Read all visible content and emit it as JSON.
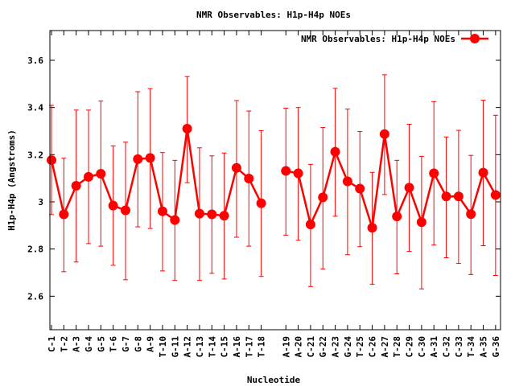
{
  "chart_data": {
    "type": "line",
    "title": "NMR Observables: H1p-H4p NOEs",
    "xlabel": "Nucleotide",
    "ylabel": "H1p-H4p (Angstroms)",
    "ylim": [
      2.458,
      3.726
    ],
    "xlim": [
      -0.13,
      36.4
    ],
    "yticks": [
      2.6,
      2.8,
      3.0,
      3.2,
      3.4,
      3.6
    ],
    "ytick_labels": [
      "2.6",
      "2.8",
      "3",
      "3.2",
      "3.4",
      "3.6"
    ],
    "legend": {
      "label": "NMR Observables: H1p-H4p NOEs",
      "position": "top-right"
    },
    "color": "#ff0000",
    "categories": [
      "C-1",
      "T-2",
      "A-3",
      "G-4",
      "G-5",
      "T-6",
      "G-7",
      "G-8",
      "A-9",
      "T-10",
      "G-11",
      "A-12",
      "C-13",
      "T-14",
      "C-15",
      "A-16",
      "T-17",
      "T-18",
      "A-19",
      "A-20",
      "C-21",
      "G-22",
      "A-23",
      "G-24",
      "T-25",
      "C-26",
      "A-27",
      "T-28",
      "C-29",
      "C-30",
      "A-31",
      "C-32",
      "C-33",
      "T-34",
      "A-35",
      "G-36"
    ],
    "x": [
      0,
      1,
      2,
      3,
      4,
      5,
      6,
      7,
      8,
      9,
      10,
      11,
      12,
      13,
      14,
      15,
      16,
      17,
      19,
      20,
      21,
      22,
      23,
      24,
      25,
      26,
      27,
      28,
      29,
      30,
      31,
      32,
      33,
      34,
      35,
      36
    ],
    "series": [
      {
        "name": "NMR Observables: H1p-H4p NOEs",
        "values": [
          3.177,
          2.947,
          3.068,
          3.106,
          3.119,
          2.984,
          2.964,
          3.181,
          3.186,
          2.96,
          2.923,
          3.31,
          2.95,
          2.947,
          2.941,
          3.144,
          3.099,
          2.994,
          3.131,
          3.121,
          2.904,
          3.019,
          3.212,
          3.087,
          3.056,
          2.89,
          3.287,
          2.938,
          3.06,
          2.914,
          3.121,
          3.023,
          3.023,
          2.948,
          3.124,
          3.029
        ],
        "err_high": [
          3.409,
          3.185,
          3.389,
          3.389,
          3.427,
          3.237,
          3.253,
          3.467,
          3.48,
          3.209,
          3.176,
          3.531,
          3.229,
          3.195,
          3.207,
          3.429,
          3.385,
          3.302,
          3.397,
          3.4,
          3.159,
          3.315,
          3.481,
          3.393,
          3.298,
          3.125,
          3.539,
          3.176,
          3.329,
          3.193,
          3.425,
          3.275,
          3.303,
          3.197,
          3.431,
          3.367
        ],
        "err_low": [
          2.946,
          2.704,
          2.745,
          2.823,
          2.812,
          2.731,
          2.67,
          2.894,
          2.887,
          2.707,
          2.667,
          3.081,
          2.667,
          2.697,
          2.673,
          2.85,
          2.812,
          2.684,
          2.859,
          2.837,
          2.641,
          2.715,
          2.939,
          2.776,
          2.81,
          2.651,
          3.031,
          2.695,
          2.79,
          2.631,
          2.817,
          2.763,
          2.739,
          2.692,
          2.814,
          2.688
        ]
      }
    ]
  }
}
